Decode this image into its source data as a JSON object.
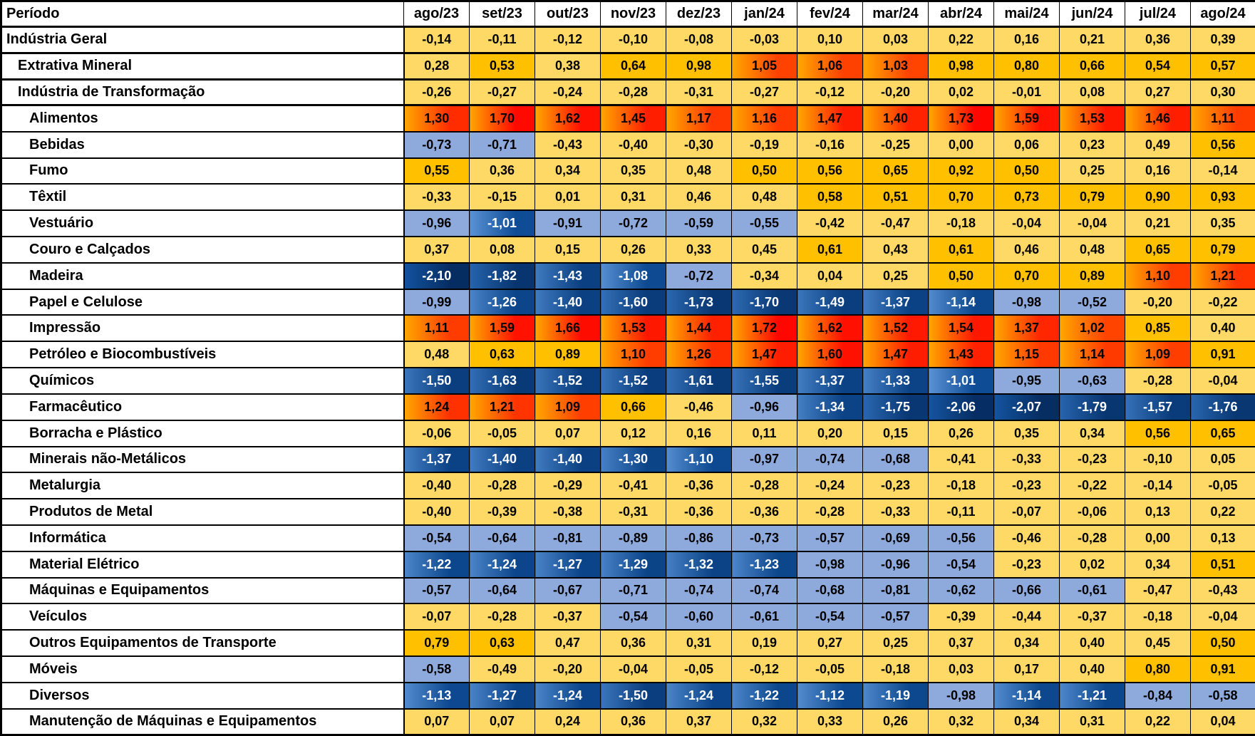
{
  "chart_data": {
    "type": "heatmap",
    "corner_label": "Período",
    "x_labels": [
      "ago/23",
      "set/23",
      "out/23",
      "nov/23",
      "dez/23",
      "jan/24",
      "fev/24",
      "mar/24",
      "abr/24",
      "mai/24",
      "jun/24",
      "jul/24",
      "ago/24"
    ],
    "rows": [
      {
        "label": "Indústria Geral",
        "indent": 0,
        "section_break": true,
        "values": [
          -0.14,
          -0.11,
          -0.12,
          -0.1,
          -0.08,
          -0.03,
          0.1,
          0.03,
          0.22,
          0.16,
          0.21,
          0.36,
          0.39
        ]
      },
      {
        "label": "Extrativa Mineral",
        "indent": 1,
        "section_break": true,
        "values": [
          0.28,
          0.53,
          0.38,
          0.64,
          0.98,
          1.05,
          1.06,
          1.03,
          0.98,
          0.8,
          0.66,
          0.54,
          0.57
        ]
      },
      {
        "label": "Indústria de Transformação",
        "indent": 1,
        "section_break": true,
        "values": [
          -0.26,
          -0.27,
          -0.24,
          -0.28,
          -0.31,
          -0.27,
          -0.12,
          -0.2,
          0.02,
          -0.01,
          0.08,
          0.27,
          0.3
        ]
      },
      {
        "label": "Alimentos",
        "indent": 2,
        "section_break": false,
        "values": [
          1.3,
          1.7,
          1.62,
          1.45,
          1.17,
          1.16,
          1.47,
          1.4,
          1.73,
          1.59,
          1.53,
          1.46,
          1.11
        ]
      },
      {
        "label": "Bebidas",
        "indent": 2,
        "section_break": false,
        "values": [
          -0.73,
          -0.71,
          -0.43,
          -0.4,
          -0.3,
          -0.19,
          -0.16,
          -0.25,
          0.0,
          0.06,
          0.23,
          0.49,
          0.56
        ]
      },
      {
        "label": "Fumo",
        "indent": 2,
        "section_break": false,
        "values": [
          0.55,
          0.36,
          0.34,
          0.35,
          0.48,
          0.5,
          0.56,
          0.65,
          0.92,
          0.5,
          0.25,
          0.16,
          -0.14
        ]
      },
      {
        "label": "Têxtil",
        "indent": 2,
        "section_break": false,
        "values": [
          -0.33,
          -0.15,
          0.01,
          0.31,
          0.46,
          0.48,
          0.58,
          0.51,
          0.7,
          0.73,
          0.79,
          0.9,
          0.93
        ]
      },
      {
        "label": "Vestuário",
        "indent": 2,
        "section_break": false,
        "values": [
          -0.96,
          -1.01,
          -0.91,
          -0.72,
          -0.59,
          -0.55,
          -0.42,
          -0.47,
          -0.18,
          -0.04,
          -0.04,
          0.21,
          0.35
        ]
      },
      {
        "label": "Couro e Calçados",
        "indent": 2,
        "section_break": false,
        "values": [
          0.37,
          0.08,
          0.15,
          0.26,
          0.33,
          0.45,
          0.61,
          0.43,
          0.61,
          0.46,
          0.48,
          0.65,
          0.79
        ]
      },
      {
        "label": "Madeira",
        "indent": 2,
        "section_break": false,
        "values": [
          -2.1,
          -1.82,
          -1.43,
          -1.08,
          -0.72,
          -0.34,
          0.04,
          0.25,
          0.5,
          0.7,
          0.89,
          1.1,
          1.21
        ]
      },
      {
        "label": "Papel e Celulose",
        "indent": 2,
        "section_break": false,
        "values": [
          -0.99,
          -1.26,
          -1.4,
          -1.6,
          -1.73,
          -1.7,
          -1.49,
          -1.37,
          -1.14,
          -0.98,
          -0.52,
          -0.2,
          -0.22
        ]
      },
      {
        "label": "Impressão",
        "indent": 2,
        "section_break": false,
        "values": [
          1.11,
          1.59,
          1.66,
          1.53,
          1.44,
          1.72,
          1.62,
          1.52,
          1.54,
          1.37,
          1.02,
          0.85,
          0.4
        ]
      },
      {
        "label": "Petróleo e Biocombustíveis",
        "indent": 2,
        "section_break": false,
        "values": [
          0.48,
          0.63,
          0.89,
          1.1,
          1.26,
          1.47,
          1.6,
          1.47,
          1.43,
          1.15,
          1.14,
          1.09,
          0.91
        ]
      },
      {
        "label": "Químicos",
        "indent": 2,
        "section_break": false,
        "values": [
          -1.5,
          -1.63,
          -1.52,
          -1.52,
          -1.61,
          -1.55,
          -1.37,
          -1.33,
          -1.01,
          -0.95,
          -0.63,
          -0.28,
          -0.04
        ]
      },
      {
        "label": "Farmacêutico",
        "indent": 2,
        "section_break": false,
        "values": [
          1.24,
          1.21,
          1.09,
          0.66,
          -0.46,
          -0.96,
          -1.34,
          -1.75,
          -2.06,
          -2.07,
          -1.79,
          -1.57,
          -1.76
        ]
      },
      {
        "label": "Borracha e Plástico",
        "indent": 2,
        "section_break": false,
        "values": [
          -0.06,
          -0.05,
          0.07,
          0.12,
          0.16,
          0.11,
          0.2,
          0.15,
          0.26,
          0.35,
          0.34,
          0.56,
          0.65
        ]
      },
      {
        "label": "Minerais não-Metálicos",
        "indent": 2,
        "section_break": false,
        "values": [
          -1.37,
          -1.4,
          -1.4,
          -1.3,
          -1.1,
          -0.97,
          -0.74,
          -0.68,
          -0.41,
          -0.33,
          -0.23,
          -0.1,
          0.05
        ]
      },
      {
        "label": "Metalurgia",
        "indent": 2,
        "section_break": false,
        "values": [
          -0.4,
          -0.28,
          -0.29,
          -0.41,
          -0.36,
          -0.28,
          -0.24,
          -0.23,
          -0.18,
          -0.23,
          -0.22,
          -0.14,
          -0.05
        ]
      },
      {
        "label": "Produtos de Metal",
        "indent": 2,
        "section_break": false,
        "values": [
          -0.4,
          -0.39,
          -0.38,
          -0.31,
          -0.36,
          -0.36,
          -0.28,
          -0.33,
          -0.11,
          -0.07,
          -0.06,
          0.13,
          0.22
        ]
      },
      {
        "label": "Informática",
        "indent": 2,
        "section_break": false,
        "values": [
          -0.54,
          -0.64,
          -0.81,
          -0.89,
          -0.86,
          -0.73,
          -0.57,
          -0.69,
          -0.56,
          -0.46,
          -0.28,
          0.0,
          0.13
        ]
      },
      {
        "label": "Material Elétrico",
        "indent": 2,
        "section_break": false,
        "values": [
          -1.22,
          -1.24,
          -1.27,
          -1.29,
          -1.32,
          -1.23,
          -0.98,
          -0.96,
          -0.54,
          -0.23,
          0.02,
          0.34,
          0.51
        ]
      },
      {
        "label": "Máquinas e Equipamentos",
        "indent": 2,
        "section_break": false,
        "values": [
          -0.57,
          -0.64,
          -0.67,
          -0.71,
          -0.74,
          -0.74,
          -0.68,
          -0.81,
          -0.62,
          -0.66,
          -0.61,
          -0.47,
          -0.43
        ]
      },
      {
        "label": "Veículos",
        "indent": 2,
        "section_break": false,
        "values": [
          -0.07,
          -0.28,
          -0.37,
          -0.54,
          -0.6,
          -0.61,
          -0.54,
          -0.57,
          -0.39,
          -0.44,
          -0.37,
          -0.18,
          -0.04
        ]
      },
      {
        "label": "Outros Equipamentos de Transporte",
        "indent": 2,
        "section_break": false,
        "values": [
          0.79,
          0.63,
          0.47,
          0.36,
          0.31,
          0.19,
          0.27,
          0.25,
          0.37,
          0.34,
          0.4,
          0.45,
          0.5
        ]
      },
      {
        "label": "Móveis",
        "indent": 2,
        "section_break": false,
        "values": [
          -0.58,
          -0.49,
          -0.2,
          -0.04,
          -0.05,
          -0.12,
          -0.05,
          -0.18,
          0.03,
          0.17,
          0.4,
          0.8,
          0.91
        ]
      },
      {
        "label": "Diversos",
        "indent": 2,
        "section_break": false,
        "values": [
          -1.13,
          -1.27,
          -1.24,
          -1.5,
          -1.24,
          -1.22,
          -1.12,
          -1.19,
          -0.98,
          -1.14,
          -1.21,
          -0.84,
          -0.58
        ]
      },
      {
        "label": "Manutenção de Máquinas e Equipamentos",
        "indent": 2,
        "section_break": false,
        "values": [
          0.07,
          0.07,
          0.24,
          0.36,
          0.37,
          0.32,
          0.33,
          0.26,
          0.32,
          0.34,
          0.31,
          0.22,
          0.04
        ]
      }
    ],
    "value_format": "comma_decimal_2dp",
    "legend_position": "none",
    "grid": true,
    "color_scale": {
      "description": "blue-gold-red heatmap buckets by value",
      "gold_mid": "#FFD966",
      "orange_high": "#FFC000",
      "red_max_left": "#FFA600",
      "red_max_right": "#FF0000",
      "red_right_start": "#FF4600",
      "light_blue_low": "#8EA9DB",
      "navy_left_light": "#5B93D4",
      "navy_left_dark": "#12529E",
      "navy_right_light": "#0E4C96",
      "navy_right_dark": "#062D62",
      "negative_text": "#FFFFFF",
      "positive_text": "#000000",
      "thresholds": {
        "red_min": 1.0,
        "orange_min": 0.5,
        "light_blue_max": -0.5,
        "navy_max": -1.0
      }
    }
  }
}
